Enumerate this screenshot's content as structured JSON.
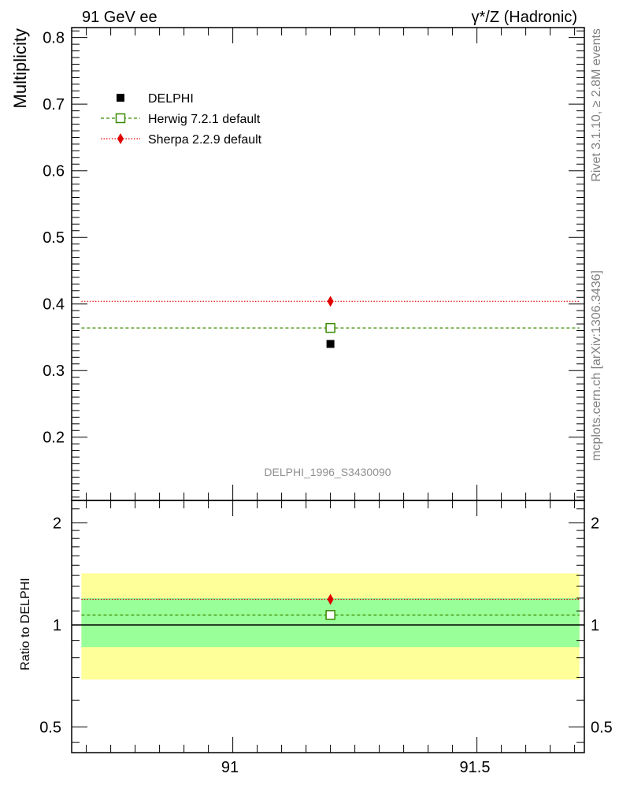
{
  "header": {
    "left_label": "91 GeV ee",
    "right_label": "γ*/Z (Hadronic)"
  },
  "side_labels": {
    "rivet": "Rivet 3.1.10, ≥ 2.8M events",
    "mcplots": "mcplots.cern.ch [arXiv:1306.3436]"
  },
  "watermark": "DELPHI_1996_S3430090",
  "chart_data": [
    {
      "type": "scatter",
      "ylabel": "Multiplicity",
      "xlim": [
        90.67,
        91.72
      ],
      "ylim": [
        0.105,
        0.815
      ],
      "x_ticks": [
        "91",
        "91.5"
      ],
      "y_ticks": [
        "0.2",
        "0.3",
        "0.4",
        "0.5",
        "0.6",
        "0.7",
        "0.8"
      ],
      "bin": [
        90.69,
        91.71
      ],
      "legend_position": "top-left",
      "series": [
        {
          "name": "DELPHI",
          "x": [
            91.2
          ],
          "y": [
            0.34
          ],
          "color": "#000000",
          "marker": "square"
        },
        {
          "name": "Herwig 7.2.1 default",
          "x": [
            91.2
          ],
          "y": [
            0.364
          ],
          "color": "#3a8a00",
          "marker": "open-square",
          "line": "dashed"
        },
        {
          "name": "Sherpa 2.2.9 default",
          "x": [
            91.2
          ],
          "y": [
            0.404
          ],
          "color": "#e00000",
          "marker": "diamond",
          "line": "dotted"
        }
      ]
    },
    {
      "type": "scatter",
      "ylabel": "Ratio to DELPHI",
      "xlim": [
        90.67,
        91.72
      ],
      "ylim": [
        0.42,
        2.33
      ],
      "y_ticks": [
        "0.5",
        "1",
        "2"
      ],
      "bands": {
        "outer": [
          0.69,
          1.42
        ],
        "inner": [
          0.86,
          1.2
        ],
        "outer_color": "#ffff99",
        "inner_color": "#99ff99"
      },
      "series": [
        {
          "name": "Herwig 7.2.1 default",
          "x": [
            91.2
          ],
          "y": [
            1.07
          ],
          "color": "#3a8a00",
          "marker": "open-square",
          "line": "dashed"
        },
        {
          "name": "Sherpa 2.2.9 default",
          "x": [
            91.2
          ],
          "y": [
            1.19
          ],
          "color": "#e00000",
          "marker": "diamond",
          "line": "dotted"
        }
      ]
    }
  ]
}
